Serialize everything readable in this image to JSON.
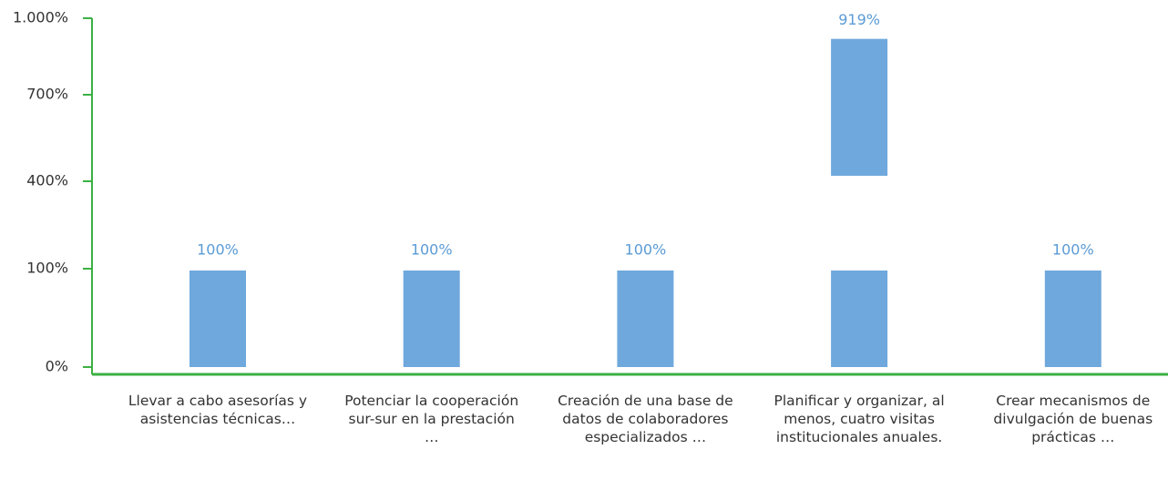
{
  "chart_data": {
    "type": "bar",
    "categories": [
      "Llevar a cabo asesorías y asistencias técnicas…",
      "Potenciar la cooperación sur-sur en la prestación …",
      "Creación de una base de datos de colaboradores especializados …",
      "Planificar y organizar, al menos, cuatro visitas institucionales anuales.",
      "Crear mecanismos de divulgación de buenas prácticas …"
    ],
    "values": [
      100,
      100,
      100,
      919,
      100
    ],
    "value_labels": [
      "100%",
      "100%",
      "100%",
      "919%",
      "100%"
    ],
    "color": "#6fa8dc",
    "axis_color": "#3cb043",
    "label_color": "#5b9bd5",
    "ylim": [
      0,
      1000
    ],
    "yticks": [
      {
        "value": 0,
        "label": "0%"
      },
      {
        "value": 100,
        "label": "100%"
      },
      {
        "value": 400,
        "label": "400%"
      },
      {
        "value": 700,
        "label": "700%"
      },
      {
        "value": 1000,
        "label": "1.000%"
      }
    ]
  }
}
